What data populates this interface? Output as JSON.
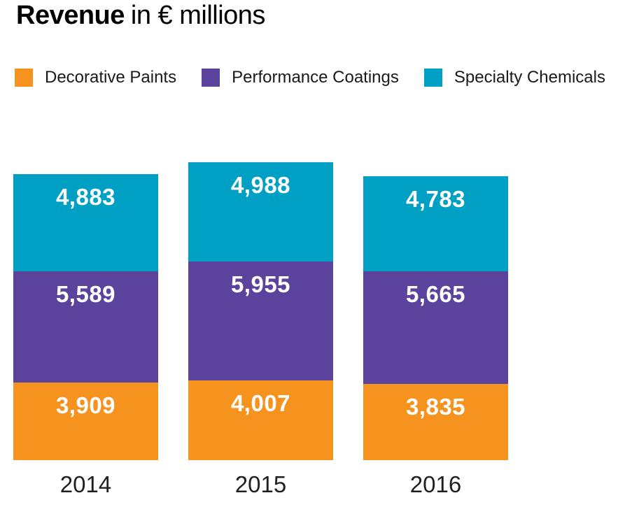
{
  "title": {
    "bold": "Revenue",
    "rest": "in € millions"
  },
  "chart_data": {
    "type": "bar",
    "stacked": true,
    "title": "Revenue in € millions",
    "unit": "€ millions",
    "categories": [
      "2014",
      "2015",
      "2016"
    ],
    "series": [
      {
        "name": "Decorative Paints",
        "color": "#F6921E",
        "values": [
          3909,
          4007,
          3835
        ],
        "labels": [
          "3,909",
          "4,007",
          "3,835"
        ]
      },
      {
        "name": "Performance Coatings",
        "color": "#5B429C",
        "values": [
          5589,
          5955,
          5665
        ],
        "labels": [
          "5,589",
          "5,955",
          "5,665"
        ]
      },
      {
        "name": "Specialty Chemicals",
        "color": "#00A0C4",
        "values": [
          4883,
          4988,
          4783
        ],
        "labels": [
          "4,883",
          "4,988",
          "4,783"
        ]
      }
    ],
    "legend_position": "top",
    "grid": false,
    "y_axis_shown": false,
    "value_labels": "inside-top",
    "value_label_color": "#FFFFFF",
    "axis_label_color": "#231F20"
  }
}
